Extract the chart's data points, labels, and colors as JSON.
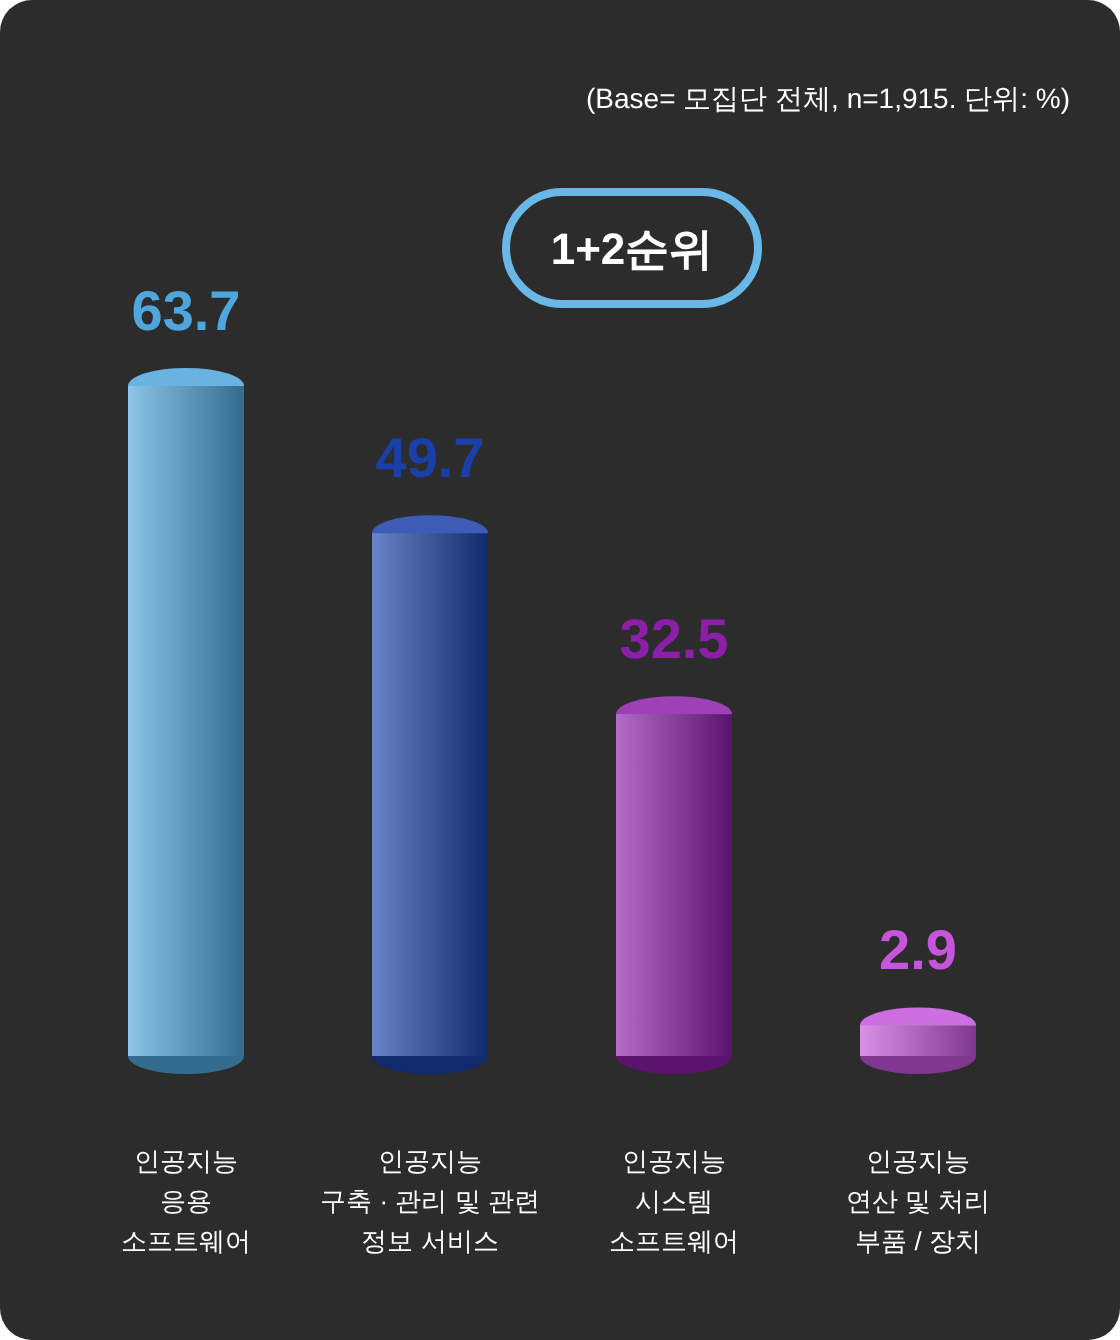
{
  "chart_data": {
    "type": "bar",
    "subtitle": "1+2순위",
    "annotations": [
      "(Base= 모집단 전체, n=1,915.  단위: %)"
    ],
    "categories": [
      "인공지능\n응용\n소프트웨어",
      "인공지능\n구축 · 관리 및 관련\n정보 서비스",
      "인공지능\n시스템\n소프트웨어",
      "인공지능\n연산 및 처리\n부품 / 장치"
    ],
    "values": [
      63.7,
      49.7,
      32.5,
      2.9
    ],
    "colors": [
      "#4fa6dc",
      "#1a3fa8",
      "#8c1fa8",
      "#c455dc"
    ],
    "data_labels": true
  }
}
